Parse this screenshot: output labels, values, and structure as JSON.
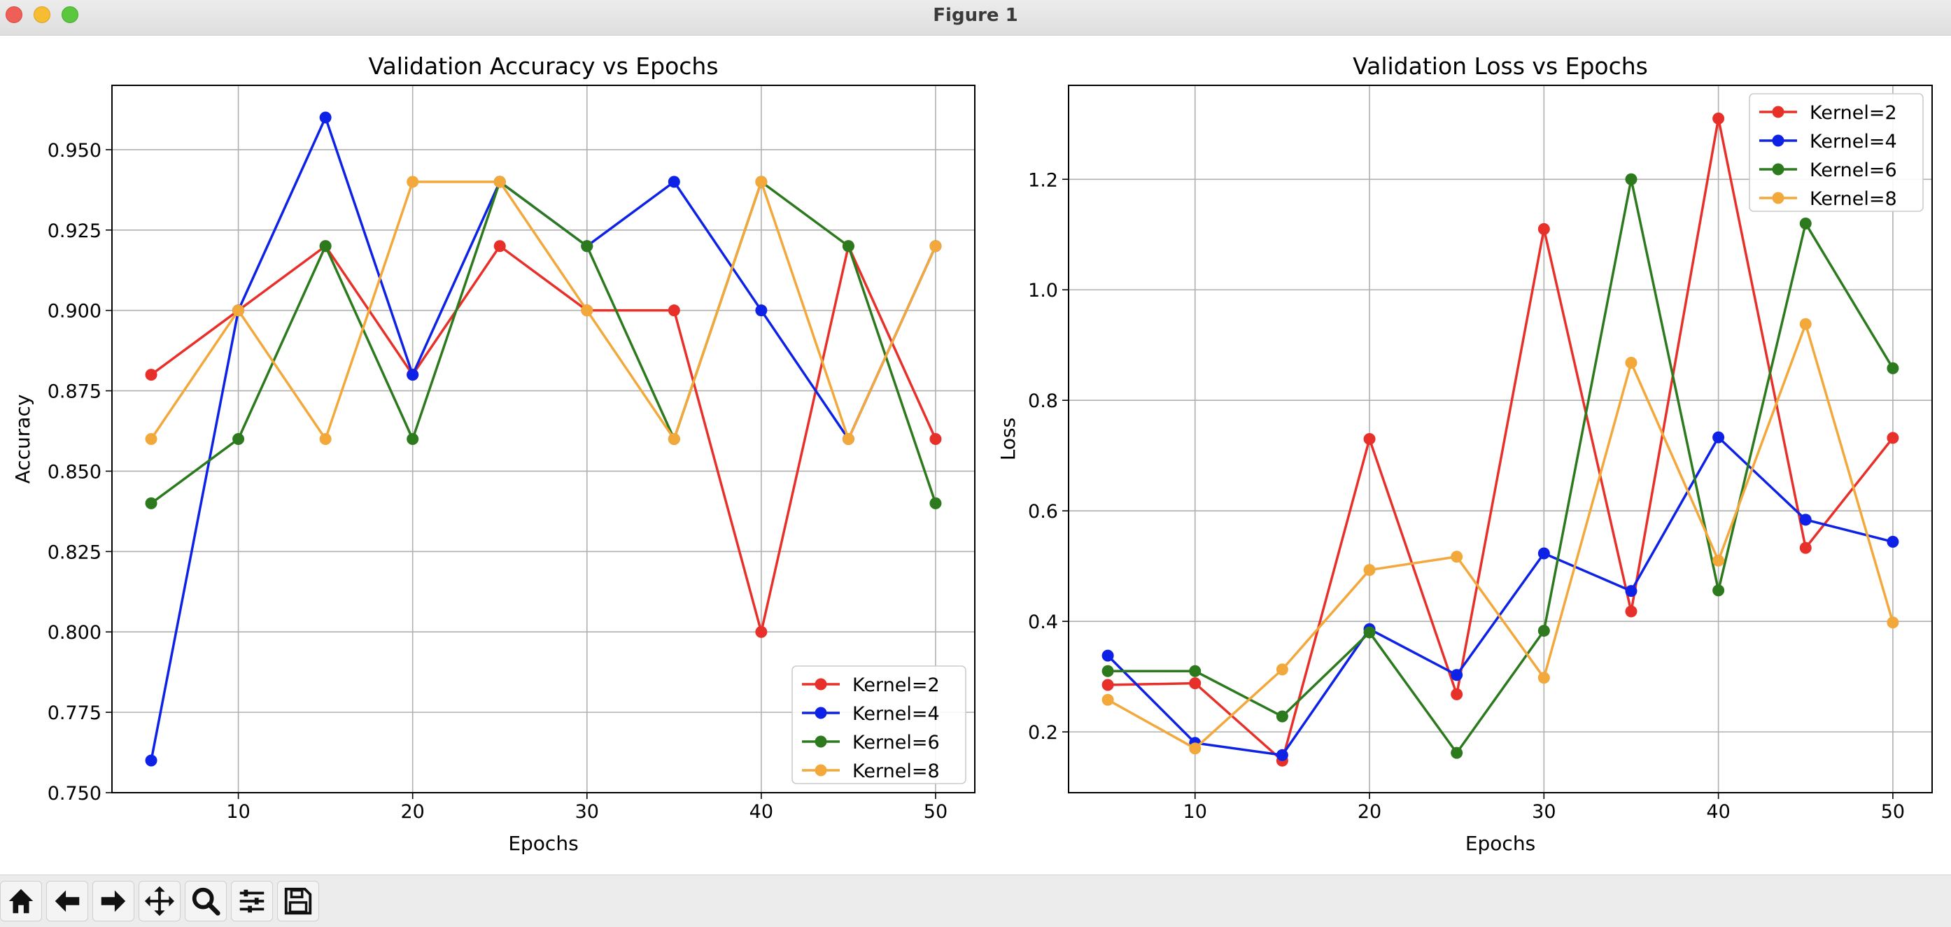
{
  "window": {
    "title": "Figure 1"
  },
  "toolbar": {
    "buttons": [
      {
        "name": "home-icon"
      },
      {
        "name": "back-icon"
      },
      {
        "name": "forward-icon"
      },
      {
        "name": "pan-icon"
      },
      {
        "name": "zoom-icon"
      },
      {
        "name": "configure-subplots-icon"
      },
      {
        "name": "save-icon"
      }
    ]
  },
  "chart_data": [
    {
      "type": "line",
      "title": "Validation Accuracy vs Epochs",
      "xlabel": "Epochs",
      "ylabel": "Accuracy",
      "x": [
        5,
        10,
        15,
        20,
        25,
        30,
        35,
        40,
        45,
        50
      ],
      "xlim": [
        2.75,
        52.25
      ],
      "ylim": [
        0.75,
        0.97
      ],
      "xticks": [
        10,
        20,
        30,
        40,
        50
      ],
      "xtick_labels": [
        "10",
        "20",
        "30",
        "40",
        "50"
      ],
      "yticks": [
        0.75,
        0.775,
        0.8,
        0.825,
        0.85,
        0.875,
        0.9,
        0.925,
        0.95
      ],
      "ytick_labels": [
        "0.750",
        "0.775",
        "0.800",
        "0.825",
        "0.850",
        "0.875",
        "0.900",
        "0.925",
        "0.950"
      ],
      "grid": true,
      "legend_position": "lower-right",
      "series": [
        {
          "name": "Kernel=2",
          "color": "#e8302a",
          "values": [
            0.88,
            0.9,
            0.92,
            0.88,
            0.92,
            0.9,
            0.9,
            0.8,
            0.92,
            0.86
          ]
        },
        {
          "name": "Kernel=4",
          "color": "#0d22e6",
          "values": [
            0.76,
            0.9,
            0.96,
            0.88,
            0.94,
            0.92,
            0.94,
            0.9,
            0.86,
            0.92
          ]
        },
        {
          "name": "Kernel=6",
          "color": "#2c7a1d",
          "values": [
            0.84,
            0.86,
            0.92,
            0.86,
            0.94,
            0.92,
            0.86,
            0.94,
            0.92,
            0.84
          ]
        },
        {
          "name": "Kernel=8",
          "color": "#f2a83b",
          "values": [
            0.86,
            0.9,
            0.86,
            0.94,
            0.94,
            0.9,
            0.86,
            0.94,
            0.86,
            0.92
          ]
        }
      ]
    },
    {
      "type": "line",
      "title": "Validation Loss vs Epochs",
      "xlabel": "Epochs",
      "ylabel": "Loss",
      "x": [
        5,
        10,
        15,
        20,
        25,
        30,
        35,
        40,
        45,
        50
      ],
      "xlim": [
        2.75,
        52.25
      ],
      "ylim": [
        0.09,
        1.37
      ],
      "xticks": [
        10,
        20,
        30,
        40,
        50
      ],
      "xtick_labels": [
        "10",
        "20",
        "30",
        "40",
        "50"
      ],
      "yticks": [
        0.2,
        0.4,
        0.6,
        0.8,
        1.0,
        1.2
      ],
      "ytick_labels": [
        "0.2",
        "0.4",
        "0.6",
        "0.8",
        "1.0",
        "1.2"
      ],
      "grid": true,
      "legend_position": "upper-right",
      "series": [
        {
          "name": "Kernel=2",
          "color": "#e8302a",
          "values": [
            0.285,
            0.288,
            0.148,
            0.73,
            0.268,
            1.11,
            0.418,
            1.31,
            0.533,
            0.732
          ]
        },
        {
          "name": "Kernel=4",
          "color": "#0d22e6",
          "values": [
            0.338,
            0.18,
            0.158,
            0.386,
            0.303,
            0.523,
            0.455,
            0.733,
            0.584,
            0.544
          ]
        },
        {
          "name": "Kernel=6",
          "color": "#2c7a1d",
          "values": [
            0.31,
            0.31,
            0.228,
            0.38,
            0.162,
            0.383,
            1.2,
            0.456,
            1.12,
            0.858
          ]
        },
        {
          "name": "Kernel=8",
          "color": "#f2a83b",
          "values": [
            0.258,
            0.17,
            0.313,
            0.493,
            0.517,
            0.298,
            0.868,
            0.51,
            0.938,
            0.398
          ]
        }
      ]
    }
  ]
}
